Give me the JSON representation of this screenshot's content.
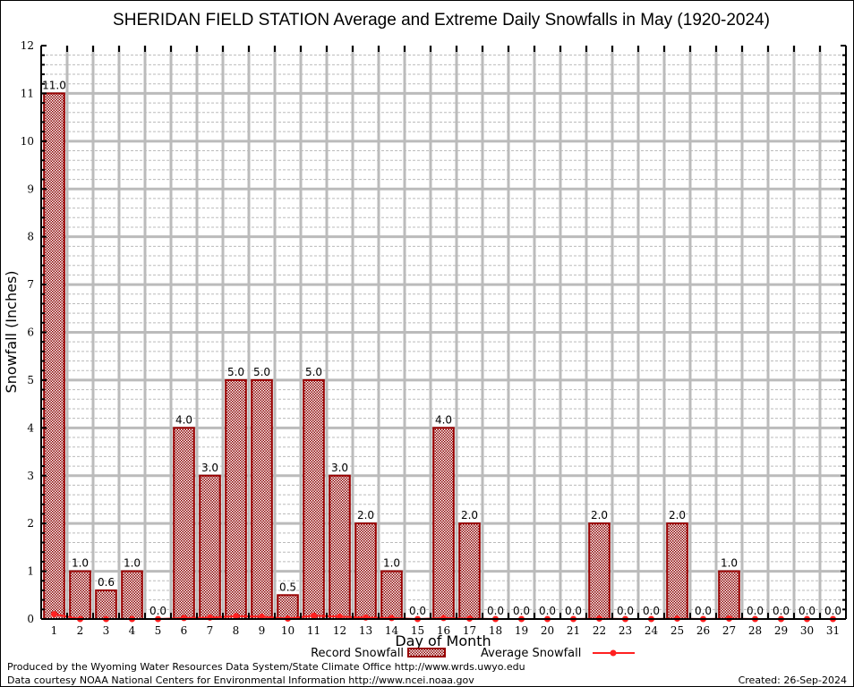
{
  "chart_data": {
    "type": "bar",
    "title": "SHERIDAN FIELD STATION Average and Extreme Daily Snowfalls in May (1920-2024)",
    "xlabel": "Day of Month",
    "ylabel": "Snowfall (Inches)",
    "ylim": [
      0,
      12
    ],
    "yticks": [
      "0",
      "1",
      "2",
      "3",
      "4",
      "5",
      "6",
      "7",
      "8",
      "9",
      "10",
      "11",
      "12"
    ],
    "grid": true,
    "categories": [
      "1",
      "2",
      "3",
      "4",
      "5",
      "6",
      "7",
      "8",
      "9",
      "10",
      "11",
      "12",
      "13",
      "14",
      "15",
      "16",
      "17",
      "18",
      "19",
      "20",
      "21",
      "22",
      "23",
      "24",
      "25",
      "26",
      "27",
      "28",
      "29",
      "30",
      "31"
    ],
    "series": [
      {
        "name": "Record Snowfall",
        "kind": "bar",
        "color": "#990000",
        "values": [
          11.0,
          1.0,
          0.6,
          1.0,
          0.0,
          4.0,
          3.0,
          5.0,
          5.0,
          0.5,
          5.0,
          3.0,
          2.0,
          1.0,
          0.0,
          4.0,
          2.0,
          0.0,
          0.0,
          0.0,
          0.0,
          2.0,
          0.0,
          0.0,
          2.0,
          0.0,
          1.0,
          0.0,
          0.0,
          0.0,
          0.0
        ],
        "labels": [
          "11.0",
          "1.0",
          "0.6",
          "1.0",
          "0.0",
          "4.0",
          "3.0",
          "5.0",
          "5.0",
          "0.5",
          "5.0",
          "3.0",
          "2.0",
          "1.0",
          "0.0",
          "4.0",
          "2.0",
          "0.0",
          "0.0",
          "0.0",
          "0.0",
          "2.0",
          "0.0",
          "0.0",
          "2.0",
          "0.0",
          "1.0",
          "0.0",
          "0.0",
          "0.0",
          "0.0"
        ]
      },
      {
        "name": "Average Snowfall",
        "kind": "line",
        "color": "#ff2020",
        "values": [
          0.1,
          0.0,
          0.0,
          0.0,
          0.0,
          0.02,
          0.03,
          0.06,
          0.05,
          0.01,
          0.07,
          0.05,
          0.03,
          0.02,
          0.0,
          0.02,
          0.01,
          0.0,
          0.0,
          0.0,
          0.0,
          0.01,
          0.0,
          0.0,
          0.01,
          0.0,
          0.01,
          0.0,
          0.0,
          0.0,
          0.0
        ]
      }
    ],
    "legend": "bottom-center"
  },
  "footer": {
    "line1": "Produced by the Wyoming Water Resources Data System/State Climate Office http://www.wrds.uwyo.edu",
    "line2": "Data courtesy NOAA National Centers for Environmental Information http://www.ncei.noaa.gov",
    "created": "Created: 26-Sep-2024"
  }
}
